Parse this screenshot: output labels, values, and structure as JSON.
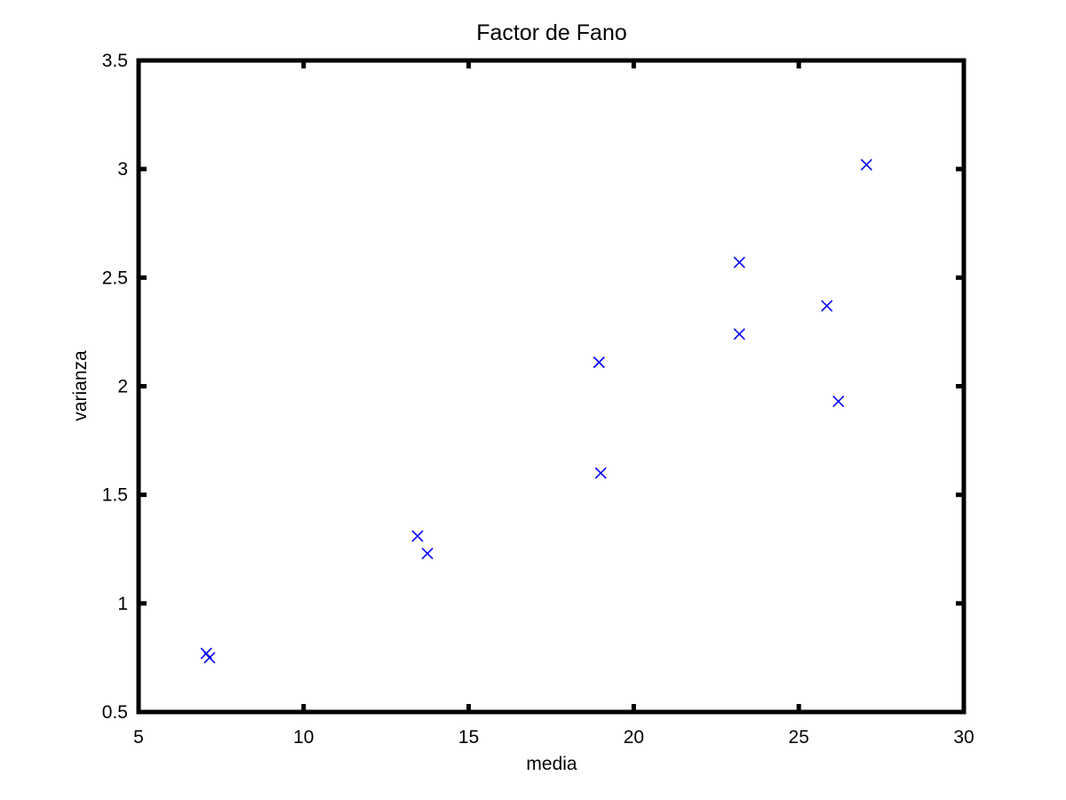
{
  "chart_data": {
    "type": "scatter",
    "title": "Factor de Fano",
    "xlabel": "media",
    "ylabel": "varianza",
    "xlim": [
      5,
      30
    ],
    "ylim": [
      0.5,
      3.5
    ],
    "xticks": [
      5,
      10,
      15,
      20,
      25,
      30
    ],
    "xtick_labels": [
      "5",
      "10",
      "15",
      "20",
      "25",
      "30"
    ],
    "yticks": [
      0.5,
      1,
      1.5,
      2,
      2.5,
      3,
      3.5
    ],
    "ytick_labels": [
      "0.5",
      "1",
      "1.5",
      "2",
      "2.5",
      "3",
      "3.5"
    ],
    "grid": false,
    "marker": "x",
    "marker_color": "#0000ff",
    "axes_color": "#000000",
    "series": [
      {
        "points": [
          {
            "x": 7.05,
            "y": 0.77
          },
          {
            "x": 7.15,
            "y": 0.75
          },
          {
            "x": 13.45,
            "y": 1.31
          },
          {
            "x": 13.75,
            "y": 1.23
          },
          {
            "x": 18.95,
            "y": 2.11
          },
          {
            "x": 19.0,
            "y": 1.6
          },
          {
            "x": 23.2,
            "y": 2.57
          },
          {
            "x": 23.2,
            "y": 2.24
          },
          {
            "x": 25.85,
            "y": 2.37
          },
          {
            "x": 26.2,
            "y": 1.93
          },
          {
            "x": 27.05,
            "y": 3.02
          }
        ]
      }
    ]
  }
}
